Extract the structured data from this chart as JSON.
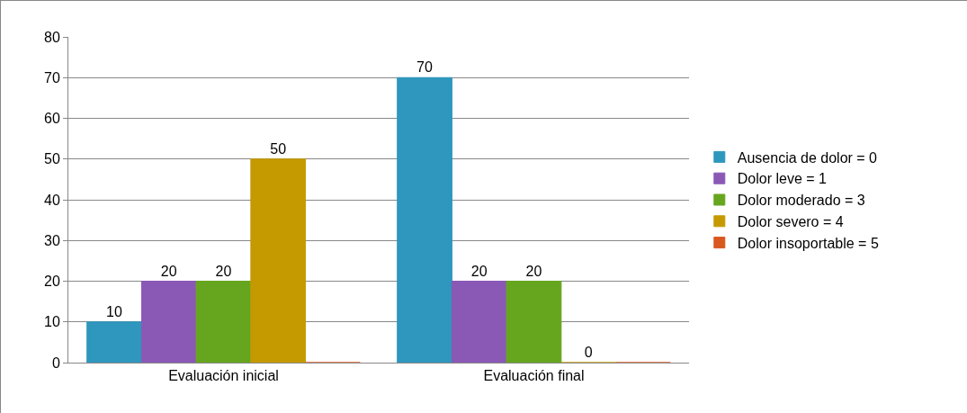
{
  "chart_data": {
    "type": "bar",
    "categories": [
      "Evaluación inicial",
      "Evaluación final"
    ],
    "series": [
      {
        "name": "Ausencia de dolor = 0",
        "color": "#2f97bd",
        "values": [
          10,
          70
        ],
        "value_labels": [
          "10",
          "70"
        ]
      },
      {
        "name": "Dolor leve = 1",
        "color": "#8a58b5",
        "values": [
          20,
          20
        ],
        "value_labels": [
          "20",
          "20"
        ]
      },
      {
        "name": "Dolor moderado = 3",
        "color": "#66a61e",
        "values": [
          20,
          20
        ],
        "value_labels": [
          "20",
          "20"
        ]
      },
      {
        "name": "Dolor severo = 4",
        "color": "#c49a00",
        "values": [
          50,
          0
        ],
        "value_labels": [
          "50",
          "0"
        ]
      },
      {
        "name": "Dolor insoportable = 5",
        "color": "#d9581f",
        "values": [
          0,
          0
        ],
        "value_labels": [
          null,
          null
        ]
      }
    ],
    "ylim": [
      0,
      80
    ],
    "yticks": [
      0,
      10,
      20,
      30,
      40,
      50,
      60,
      70,
      80
    ],
    "grid": "y",
    "legend": "right"
  }
}
